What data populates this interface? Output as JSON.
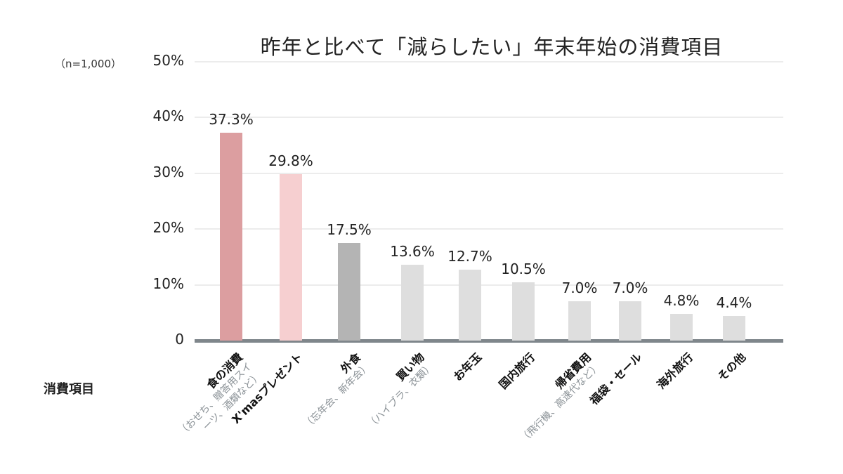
{
  "chart_data": {
    "type": "bar",
    "title": "昨年と比べて「減らしたい」年末年始の消費項目",
    "note": "（n=1,000）",
    "xlabel": "消費項目",
    "ylabel": "",
    "ylim": [
      0,
      50
    ],
    "yticks": [
      "0",
      "10%",
      "20%",
      "30%",
      "40%",
      "50%"
    ],
    "grid": true,
    "legend": null,
    "categories": [
      {
        "label": "食の消費",
        "sub": [
          "（おせち、贈答用スイ",
          "ーツ、酒類など）"
        ]
      },
      {
        "label": "X'masプレゼント",
        "sub": []
      },
      {
        "label": "外食",
        "sub": [
          "（忘年会、新年会）"
        ]
      },
      {
        "label": "買い物",
        "sub": [
          "（ハイブラ、衣類）"
        ]
      },
      {
        "label": "お年玉",
        "sub": []
      },
      {
        "label": "国内旅行",
        "sub": []
      },
      {
        "label": "帰省費用",
        "sub": [
          "（飛行機、高速代など）"
        ]
      },
      {
        "label": "福袋・セール",
        "sub": []
      },
      {
        "label": "海外旅行",
        "sub": []
      },
      {
        "label": "その他",
        "sub": []
      }
    ],
    "values": [
      37.3,
      29.8,
      17.5,
      13.6,
      12.7,
      10.5,
      7.0,
      7.0,
      4.8,
      4.4
    ],
    "value_labels": [
      "37.3%",
      "29.8%",
      "17.5%",
      "13.6%",
      "12.7%",
      "10.5%",
      "7.0%",
      "7.0%",
      "4.8%",
      "4.4%"
    ],
    "colors": [
      "#dc9ea0",
      "#f6cfd0",
      "#b4b4b4",
      "#dedede",
      "#dedede",
      "#dedede",
      "#dedede",
      "#dedede",
      "#dedede",
      "#dedede"
    ]
  }
}
